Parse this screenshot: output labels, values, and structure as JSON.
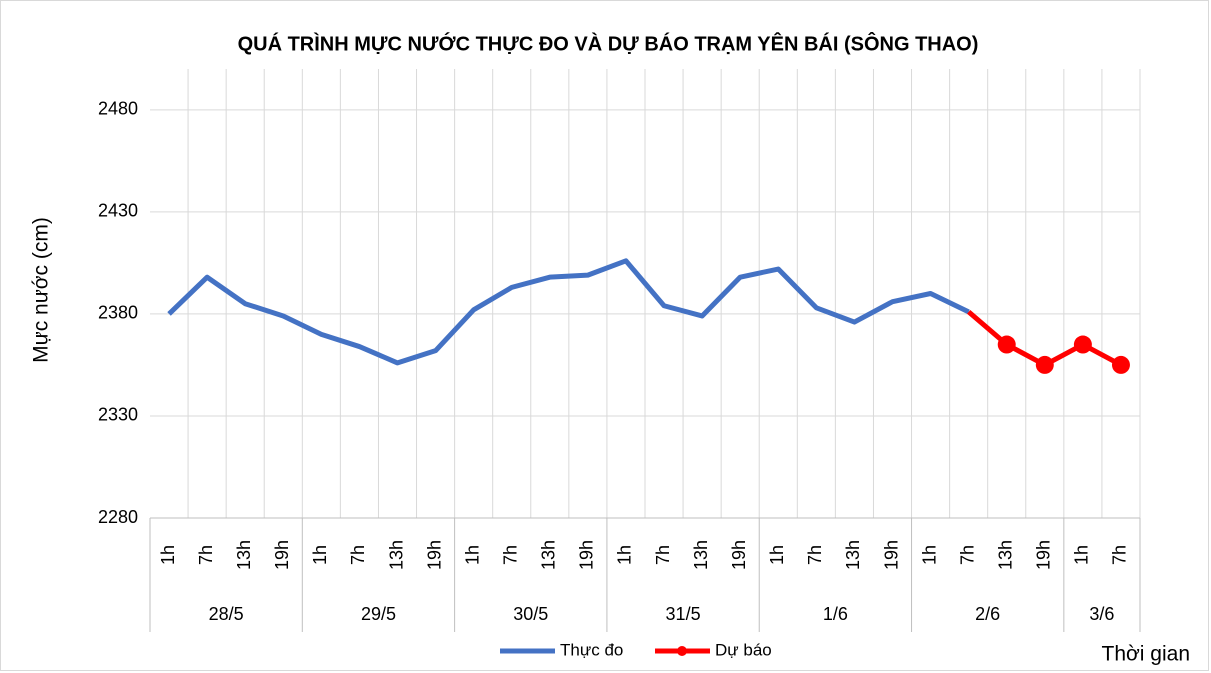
{
  "chart_data": {
    "type": "line",
    "title": "QUÁ TRÌNH MỰC NƯỚC THỰC ĐO VÀ DỰ BÁO TRẠM YÊN BÁI (SÔNG THAO)",
    "y_label": "Mực nước (cm)",
    "x_label": "Thời gian",
    "category_groups": [
      {
        "name": "28/5",
        "categories": [
          "1h",
          "7h",
          "13h",
          "19h"
        ]
      },
      {
        "name": "29/5",
        "categories": [
          "1h",
          "7h",
          "13h",
          "19h"
        ]
      },
      {
        "name": "30/5",
        "categories": [
          "1h",
          "7h",
          "13h",
          "19h"
        ]
      },
      {
        "name": "31/5",
        "categories": [
          "1h",
          "7h",
          "13h",
          "19h"
        ]
      },
      {
        "name": "1/6",
        "categories": [
          "1h",
          "7h",
          "13h",
          "19h"
        ]
      },
      {
        "name": "2/6",
        "categories": [
          "1h",
          "7h",
          "13h",
          "19h"
        ]
      },
      {
        "name": "3/6",
        "categories": [
          "1h",
          "7h"
        ]
      }
    ],
    "series": [
      {
        "name": "Thực đo",
        "color": "#4472c4",
        "marker": false,
        "values": [
          2380,
          2398,
          2385,
          2379,
          2370,
          2364,
          2356,
          2362,
          2382,
          2393,
          2398,
          2399,
          2406,
          2384,
          2379,
          2398,
          2402,
          2383,
          2376,
          2386,
          2390,
          2381,
          null,
          null,
          null,
          null
        ]
      },
      {
        "name": "Dự báo",
        "color": "#ff0000",
        "marker": true,
        "values": [
          null,
          null,
          null,
          null,
          null,
          null,
          null,
          null,
          null,
          null,
          null,
          null,
          null,
          null,
          null,
          null,
          null,
          null,
          null,
          null,
          null,
          2381,
          2365,
          2355,
          2365,
          2355
        ]
      }
    ],
    "ylim": [
      2280,
      2500
    ],
    "yticks": [
      2280,
      2330,
      2380,
      2430,
      2480
    ],
    "grid": true,
    "legend": "bottom"
  }
}
